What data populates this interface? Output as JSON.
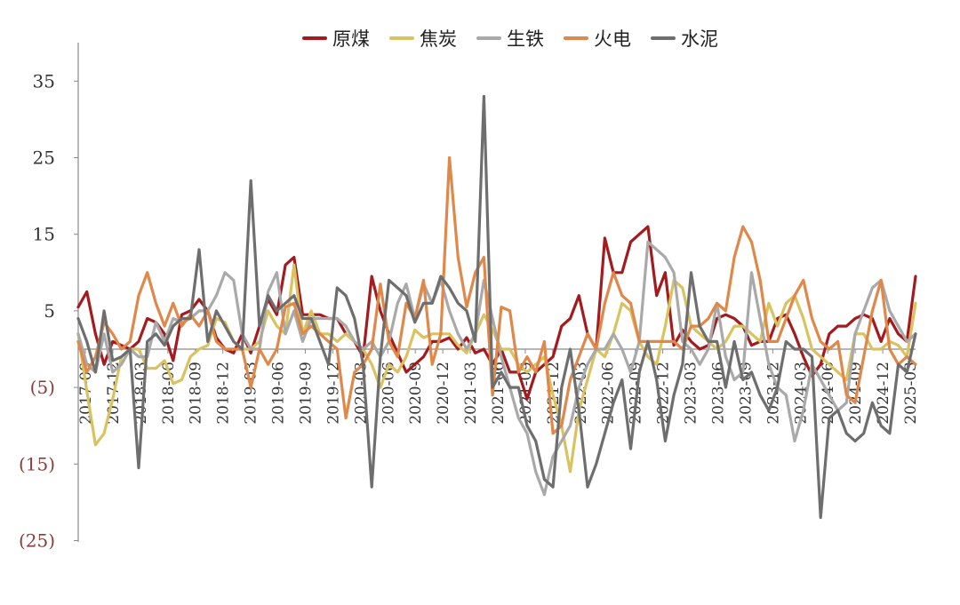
{
  "chart_data": {
    "type": "line",
    "ylim": [
      -25,
      35
    ],
    "y_ticks": [
      35,
      25,
      15,
      5,
      -5,
      -15,
      -25
    ],
    "y_tick_labels": [
      "35",
      "25",
      "15",
      "5",
      "(5)",
      "(15)",
      "(25)"
    ],
    "x_tick_labels": [
      "2017-09",
      "2017-12",
      "2018-03",
      "2018-06",
      "2018-09",
      "2018-12",
      "2019-03",
      "2019-06",
      "2019-09",
      "2019-12",
      "2020-03",
      "2020-06",
      "2020-09",
      "2020-12",
      "2021-03",
      "2021-06",
      "2021-09",
      "2021-12",
      "2022-03",
      "2022-06",
      "2022-09",
      "2022-12",
      "2023-03",
      "2023-06",
      "2023-09",
      "2023-12",
      "2024-03",
      "2024-06",
      "2024-09",
      "2024-12",
      "2025-03"
    ],
    "legend_position": "top",
    "grid": false,
    "series": [
      {
        "name": "原煤",
        "color": "#A31B1E",
        "values": [
          5.5,
          7.5,
          2,
          -2,
          1,
          0.5,
          0,
          1,
          4,
          3.5,
          2,
          -1.5,
          4.5,
          5,
          6.5,
          5,
          1.5,
          0,
          -0.5,
          2,
          -0.5,
          3,
          6.5,
          4.5,
          11,
          12,
          4.5,
          4.5,
          4.5,
          4,
          4,
          2,
          1,
          -1,
          9.5,
          5,
          2,
          -0.5,
          -3,
          -2,
          -1,
          1,
          1,
          1.5,
          0,
          1.5,
          -0.5,
          0,
          -2,
          0,
          -3,
          -3,
          -6.5,
          -3,
          -2,
          -1,
          3,
          4,
          7,
          2,
          0,
          14.5,
          10,
          10,
          14,
          15,
          16,
          7,
          10,
          0.5,
          2.5,
          1,
          0,
          0.5,
          4,
          4.5,
          4,
          3,
          0.5,
          1,
          1,
          4,
          4.5,
          2,
          -1,
          -3.5,
          -2,
          2,
          3,
          3,
          4,
          4.5,
          4,
          1,
          4,
          2,
          1,
          9.5
        ]
      },
      {
        "name": "焦炭",
        "color": "#D9C260",
        "values": [
          2,
          -5.5,
          -12.5,
          -11,
          -6.5,
          -1,
          0,
          0,
          -2.5,
          -2.5,
          -1.5,
          -4.5,
          -4,
          -1,
          0,
          0.5,
          4,
          3.5,
          1,
          0,
          0,
          1,
          5,
          3,
          2,
          11,
          2,
          5,
          2,
          2,
          1,
          2,
          1,
          0,
          -2,
          -5,
          -2,
          -3,
          -1,
          2.5,
          1.5,
          2,
          2,
          2,
          0.5,
          -0.5,
          2,
          4.5,
          2.5,
          0,
          0,
          -2,
          -3,
          -2,
          -1,
          -6,
          -10,
          -16,
          -8,
          -4,
          0,
          -1,
          2,
          6,
          5,
          1,
          -1,
          -2,
          3,
          9,
          8,
          3,
          2,
          1,
          0,
          1,
          3,
          3,
          2,
          1,
          6,
          3,
          6,
          7,
          4,
          0,
          -1,
          -2,
          -3,
          -4,
          2,
          2,
          0,
          0,
          1,
          0.5,
          -1,
          6
        ]
      },
      {
        "name": "生铁",
        "color": "#A9A9A9",
        "values": [
          2,
          -2,
          -3,
          2,
          -3,
          -2,
          0,
          -1,
          -1,
          3.5,
          1,
          4,
          3.5,
          4,
          5,
          5,
          7,
          10,
          9,
          2,
          0,
          0,
          7.5,
          10,
          2,
          5,
          1,
          4,
          4,
          4,
          4,
          3,
          1,
          0,
          1,
          -1,
          1,
          6,
          8.5,
          4,
          8.5,
          6,
          9,
          5,
          2,
          0,
          2,
          9,
          4,
          -1,
          -5,
          -9,
          -11,
          -16,
          -19,
          -14,
          -12,
          -10,
          -5,
          -2,
          0,
          0,
          2,
          0,
          -3,
          1,
          14,
          13,
          12,
          10,
          1,
          0,
          -2,
          0,
          6,
          -1,
          -4,
          -3,
          10,
          4,
          -2,
          -5,
          -6,
          -12,
          -8,
          -2,
          -4,
          -6,
          -8,
          -7,
          2,
          5,
          8,
          9,
          5,
          3,
          1,
          2
        ]
      },
      {
        "name": "火电",
        "color": "#E0874A",
        "values": [
          1,
          -3,
          -1,
          3.5,
          2,
          0,
          1,
          7,
          10,
          6,
          3,
          6,
          3,
          4.5,
          3,
          5,
          1,
          0,
          0,
          0,
          -5,
          0,
          -2,
          0,
          5.5,
          6,
          2,
          3,
          2,
          1,
          0,
          -9,
          -3,
          -2,
          0,
          8.5,
          1,
          -1,
          6,
          4,
          9,
          -2,
          2,
          25,
          12,
          5.5,
          10,
          12,
          -6,
          5.5,
          5,
          -3,
          -1,
          -3,
          1,
          -11,
          -10,
          -4,
          -1,
          2,
          0,
          6,
          10,
          7,
          6,
          1,
          1,
          1,
          1,
          1,
          0,
          3,
          3,
          4,
          6,
          5,
          12,
          16,
          14,
          9,
          1,
          1,
          4,
          7,
          9,
          4,
          1,
          0,
          1,
          -6,
          -7,
          -1,
          5,
          9,
          0,
          -2,
          -1,
          -2
        ]
      },
      {
        "name": "水泥",
        "color": "#6E6E6E",
        "values": [
          4,
          1,
          -3,
          5,
          -1.5,
          -1,
          0,
          -15.5,
          1,
          2,
          0.5,
          3,
          4,
          4,
          13,
          1,
          5,
          3,
          1,
          0,
          22,
          3,
          7,
          5,
          6,
          7,
          4,
          4,
          1,
          -2,
          8,
          7,
          4,
          -2,
          -18,
          -1,
          9,
          8,
          7,
          3.5,
          6,
          6,
          9.5,
          8,
          6,
          5,
          1,
          33,
          -5,
          -3,
          -5,
          -5,
          -10,
          -12,
          -17,
          -18,
          -5,
          0,
          -8,
          -18,
          -15,
          -11,
          -7,
          -4,
          -13,
          -3,
          1,
          -4,
          -12,
          -6,
          -2,
          10,
          3,
          1,
          1,
          -5,
          1,
          -4,
          -3,
          -6,
          -8,
          -5,
          1,
          0,
          0,
          -1,
          -22,
          -9,
          -8,
          -11,
          -12,
          -11,
          -7,
          -10,
          -11,
          -2,
          -3,
          2
        ]
      }
    ]
  }
}
